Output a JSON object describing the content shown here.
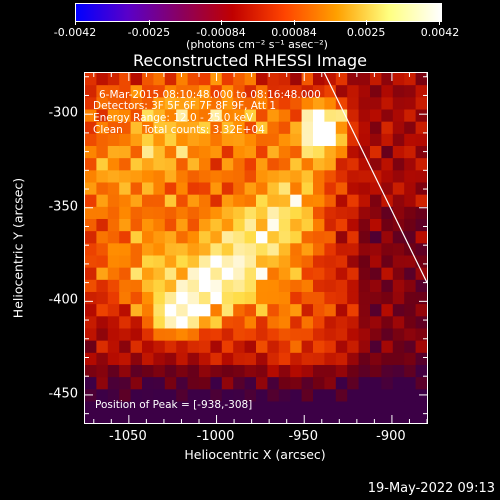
{
  "colorbar": {
    "tick_labels": [
      "-0.0042",
      "-0.0025",
      "-0.00084",
      "0.00084",
      "0.0025",
      "0.0042"
    ],
    "units": "(photons cm⁻² s⁻¹ asec⁻²)",
    "colors": [
      "#0000ff",
      "#5a00c8",
      "#8a0060",
      "#c00000",
      "#ff4400",
      "#ffa000",
      "#ffff80",
      "#ffffff"
    ]
  },
  "plot": {
    "title": "Reconstructed RHESSI Image",
    "info_time": "6-Mar-2015 08:10:48.000 to 08:16:48.000",
    "info_detectors": "Detectors: 3F 5F 6F 7F 8F 9F, Att 1",
    "info_energy": "Energy Range: 12.0 - 25.0 keV",
    "info_clean": "Clean      Total counts: 3.32E+04",
    "peak_position": "Position of Peak = [-938,-308]",
    "x_axis_title": "Heliocentric X (arcsec)",
    "y_axis_title": "Heliocentric Y (arcsec)",
    "x_ticks": [
      "-1050",
      "-1000",
      "-950",
      "-900"
    ],
    "y_ticks": [
      "-300",
      "-350",
      "-400",
      "-450"
    ]
  },
  "chart_data": {
    "type": "heatmap",
    "title": "Reconstructed RHESSI Image",
    "xlabel": "Heliocentric X (arcsec)",
    "ylabel": "Heliocentric Y (arcsec)",
    "xlim": [
      -1075,
      -880
    ],
    "ylim": [
      -465,
      -278
    ],
    "x_ticks": [
      -1050,
      -1000,
      -950,
      -900
    ],
    "y_ticks": [
      -300,
      -350,
      -400,
      -450
    ],
    "colorbar_range": [
      -0.0042,
      0.0042
    ],
    "colorbar_ticks": [
      -0.0042,
      -0.0025,
      -0.00084,
      0.00084,
      0.0025,
      0.0042
    ],
    "peak_x": -938,
    "peak_y": -308,
    "limb_line": {
      "x1": -940,
      "y1": -275,
      "x2": -880,
      "y2": -390
    }
  },
  "footer": {
    "timestamp": "19-May-2022 09:13"
  }
}
